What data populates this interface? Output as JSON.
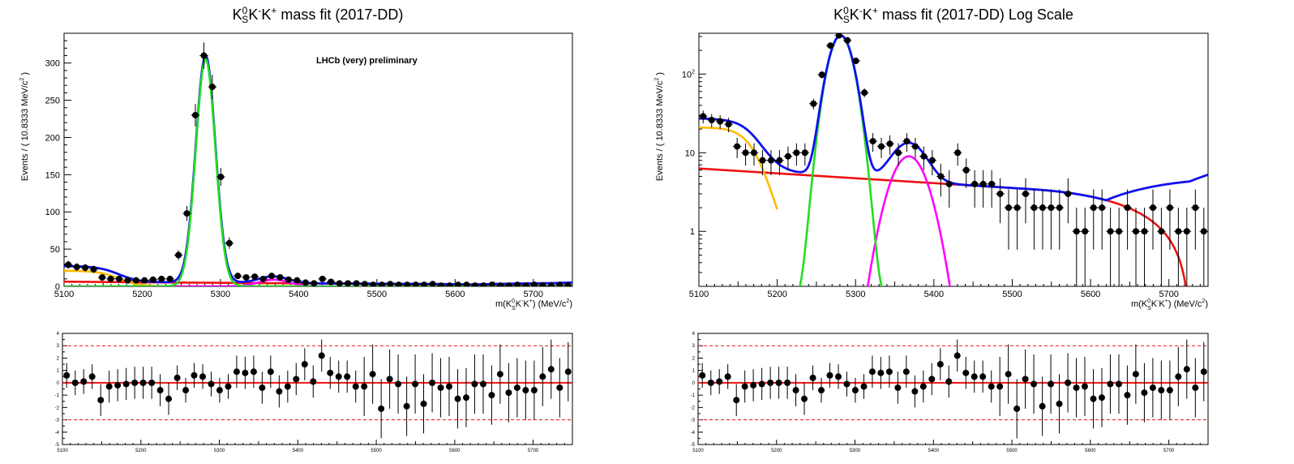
{
  "colors": {
    "total": "#1010ee",
    "signal": "#22dd22",
    "partial": "#ffbb00",
    "peaking": "#ff00ff",
    "combinatorial": "#ee1111",
    "data": "#000000",
    "pull_band": "#ee1111"
  },
  "chart_data": [
    {
      "type": "scatter",
      "panel": "linear-fit",
      "title": "K_S^0K^-K^+ mass fit (2017-DD)",
      "title_parts": {
        "K": "K",
        "sub": "S",
        "sup0": "0",
        "rest": "K",
        "minus": "-",
        "K2": "K",
        "plus": "+",
        "tail": " mass fit (2017-DD)"
      },
      "annotation": "LHCb (very) preliminary",
      "xlabel": "m(K_S^0K^-K^+) (MeV/c^2)",
      "ylabel": "Events / ( 10.8333 MeV/c^2 )",
      "ylim": [
        0,
        340
      ],
      "xlim": [
        5100,
        5750
      ],
      "x_ticks": [
        5100,
        5200,
        5300,
        5400,
        5500,
        5600,
        5700
      ],
      "y_ticks": [
        0,
        50,
        100,
        150,
        200,
        250,
        300
      ],
      "y_scale": "linear",
      "bins_center": [
        5105.4,
        5116.3,
        5127.1,
        5137.9,
        5148.8,
        5159.6,
        5170.4,
        5181.3,
        5192.1,
        5202.9,
        5213.8,
        5224.6,
        5235.4,
        5246.3,
        5257.1,
        5267.9,
        5278.8,
        5289.6,
        5300.4,
        5311.3,
        5322.1,
        5332.9,
        5343.8,
        5354.6,
        5365.4,
        5376.3,
        5387.1,
        5397.9,
        5408.8,
        5419.6,
        5430.4,
        5441.3,
        5452.1,
        5462.9,
        5473.8,
        5484.6,
        5495.4,
        5506.3,
        5517.1,
        5527.9,
        5538.8,
        5549.6,
        5560.4,
        5571.3,
        5582.1,
        5592.9,
        5603.8,
        5614.6,
        5625.4,
        5636.3,
        5647.1,
        5657.9,
        5668.8,
        5679.6,
        5690.4,
        5701.3,
        5712.1,
        5722.9,
        5733.8,
        5744.6
      ],
      "values": [
        29,
        26,
        25,
        23,
        12,
        10,
        10,
        8,
        8,
        8,
        9,
        10,
        10,
        42,
        98,
        230,
        310,
        268,
        147,
        58,
        14,
        12,
        13,
        10,
        14,
        12,
        9,
        8,
        5,
        4,
        10,
        6,
        4,
        4,
        4,
        3,
        2,
        2,
        3,
        2,
        2,
        2,
        2,
        3,
        1,
        1,
        2,
        2,
        1,
        1,
        2,
        1,
        1,
        2,
        1,
        2,
        1,
        1,
        2,
        1
      ]
    },
    {
      "type": "scatter",
      "panel": "log-fit",
      "title": "K_S^0K^-K^+ mass fit (2017-DD) Log Scale",
      "title_parts": {
        "tail": " mass fit (2017-DD) Log Scale"
      },
      "xlabel": "m(K_S^0K^-K^+) (MeV/c^2)",
      "ylabel": "Events / ( 10.8333 MeV/c^2 )",
      "ylim": [
        0.2,
        330
      ],
      "xlim": [
        5100,
        5750
      ],
      "x_ticks": [
        5100,
        5200,
        5300,
        5400,
        5500,
        5600,
        5700
      ],
      "y_ticks": [
        1,
        10,
        100
      ],
      "y_tick_labels": [
        "1",
        "10",
        "10^2"
      ],
      "y_scale": "log"
    },
    {
      "type": "scatter",
      "panel": "pulls",
      "ylim": [
        -5,
        4
      ],
      "xlim": [
        5100,
        5750
      ],
      "x_ticks": [
        5100,
        5200,
        5300,
        5400,
        5500,
        5600,
        5700
      ],
      "y_ticks": [
        -5,
        -4,
        -3,
        -2,
        -1,
        0,
        1,
        2,
        3,
        4
      ],
      "band_lines": [
        -3,
        0,
        3
      ],
      "pulls": [
        0.6,
        0.0,
        0.1,
        0.5,
        -1.4,
        -0.3,
        -0.2,
        -0.1,
        0.0,
        0.0,
        0.0,
        -0.6,
        -1.3,
        0.4,
        -0.6,
        0.6,
        0.5,
        -0.1,
        -0.6,
        -0.3,
        0.9,
        0.8,
        0.9,
        -0.4,
        0.9,
        -0.7,
        -0.3,
        0.3,
        1.5,
        0.1,
        2.2,
        0.8,
        0.5,
        0.5,
        -0.3,
        -0.3,
        0.7,
        -2.1,
        0.3,
        -0.1,
        -1.9,
        -0.1,
        -1.7,
        0.0,
        -0.4,
        -0.3,
        -1.3,
        -1.2,
        -0.1,
        -0.1,
        -1.0,
        0.7,
        -0.8,
        -0.4,
        -0.6,
        -0.6,
        0.5,
        1.1,
        -0.4,
        0.9
      ]
    }
  ],
  "labels": {
    "k": "K",
    "s": "S",
    "zero": "0",
    "minus": "-",
    "plus": "+",
    "title_left_tail": " mass fit (2017-DD)",
    "title_right_tail": " mass fit (2017-DD) Log Scale",
    "lhcb": "LHCb (very) preliminary",
    "ylabel_a": "Events / ( 10.8333 MeV/c",
    "ylabel_b": "2",
    "ylabel_c": " )",
    "xlabel_a": "m(K",
    "xlabel_b": "K",
    "xlabel_c": ") (MeV/c",
    "xlabel_d": "2",
    "xlabel_e": ")"
  }
}
